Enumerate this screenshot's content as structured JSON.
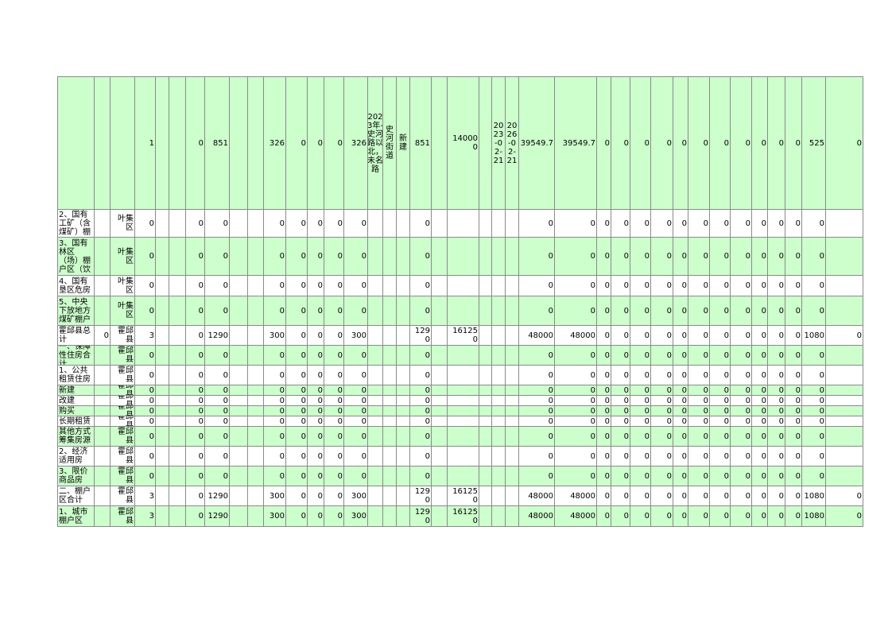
{
  "table": {
    "rows": [
      [
        null,
        null,
        null,
        1,
        null,
        null,
        0,
        851,
        null,
        null,
        326,
        0,
        0,
        0,
        326,
        "2023年-史河路以北，未名路",
        "史河街道",
        "新建",
        851,
        null,
        140000,
        null,
        "2023-02-21",
        "2026-02-21",
        39549.7,
        39549.7,
        0,
        0,
        0,
        0,
        0,
        0,
        0,
        0,
        0,
        0,
        0,
        525,
        0
      ],
      [
        "2、国有工矿（含煤矿）棚",
        null,
        "叶集区",
        0,
        null,
        null,
        0,
        0,
        null,
        null,
        0,
        0,
        0,
        0,
        0,
        null,
        null,
        null,
        0,
        null,
        null,
        null,
        null,
        null,
        0,
        0,
        0,
        0,
        0,
        0,
        0,
        0,
        0,
        0,
        0,
        0,
        0,
        0,
        null
      ],
      [
        "3、国有林区（场）棚户区（饮",
        null,
        "叶集区",
        0,
        null,
        null,
        0,
        0,
        null,
        null,
        0,
        0,
        0,
        0,
        0,
        null,
        null,
        null,
        0,
        null,
        null,
        null,
        null,
        null,
        0,
        0,
        0,
        0,
        0,
        0,
        0,
        0,
        0,
        0,
        0,
        0,
        0,
        0,
        null
      ],
      [
        "4、国有垦区危房",
        null,
        "叶集区",
        0,
        null,
        null,
        0,
        0,
        null,
        null,
        0,
        0,
        0,
        0,
        0,
        null,
        null,
        null,
        0,
        null,
        null,
        null,
        null,
        null,
        0,
        0,
        0,
        0,
        0,
        0,
        0,
        0,
        0,
        0,
        0,
        0,
        0,
        0,
        null
      ],
      [
        "5、中央下放地方煤矿棚户",
        null,
        "叶集区",
        0,
        null,
        null,
        0,
        0,
        null,
        null,
        0,
        0,
        0,
        0,
        0,
        null,
        null,
        null,
        0,
        null,
        null,
        null,
        null,
        null,
        0,
        0,
        0,
        0,
        0,
        0,
        0,
        0,
        0,
        0,
        0,
        0,
        0,
        0,
        null
      ],
      [
        "霍邱县总计",
        0,
        "霍邱县",
        3,
        null,
        null,
        0,
        1290,
        null,
        null,
        300,
        0,
        0,
        0,
        300,
        null,
        null,
        null,
        1290,
        null,
        161250,
        null,
        null,
        null,
        48000,
        48000,
        0,
        0,
        0,
        0,
        0,
        0,
        0,
        0,
        0,
        0,
        0,
        1080,
        0
      ],
      [
        "一、保障性住房合计",
        null,
        "霍邱县",
        0,
        null,
        null,
        0,
        0,
        null,
        null,
        0,
        0,
        0,
        0,
        0,
        null,
        null,
        null,
        0,
        null,
        null,
        null,
        null,
        null,
        0,
        0,
        0,
        0,
        0,
        0,
        0,
        0,
        0,
        0,
        0,
        0,
        0,
        0,
        null
      ],
      [
        "1、公共租赁住房",
        null,
        "霍邱县",
        0,
        null,
        null,
        0,
        0,
        null,
        null,
        0,
        0,
        0,
        0,
        0,
        null,
        null,
        null,
        0,
        null,
        null,
        null,
        null,
        null,
        0,
        0,
        0,
        0,
        0,
        0,
        0,
        0,
        0,
        0,
        0,
        0,
        0,
        0,
        null
      ],
      [
        "新建",
        null,
        "霍邱县",
        0,
        null,
        null,
        0,
        0,
        null,
        null,
        0,
        0,
        0,
        0,
        0,
        null,
        null,
        null,
        0,
        null,
        null,
        null,
        null,
        null,
        0,
        0,
        0,
        0,
        0,
        0,
        0,
        0,
        0,
        0,
        0,
        0,
        0,
        0,
        null
      ],
      [
        "改建",
        null,
        "霍邱县",
        0,
        null,
        null,
        0,
        0,
        null,
        null,
        0,
        0,
        0,
        0,
        0,
        null,
        null,
        null,
        0,
        null,
        null,
        null,
        null,
        null,
        0,
        0,
        0,
        0,
        0,
        0,
        0,
        0,
        0,
        0,
        0,
        0,
        0,
        0,
        null
      ],
      [
        "购买",
        null,
        "霍邱县",
        0,
        null,
        null,
        0,
        0,
        null,
        null,
        0,
        0,
        0,
        0,
        0,
        null,
        null,
        null,
        0,
        null,
        null,
        null,
        null,
        null,
        0,
        0,
        0,
        0,
        0,
        0,
        0,
        0,
        0,
        0,
        0,
        0,
        0,
        0,
        null
      ],
      [
        "长期租赁",
        null,
        "霍邱县",
        0,
        null,
        null,
        0,
        0,
        null,
        null,
        0,
        0,
        0,
        0,
        0,
        null,
        null,
        null,
        0,
        null,
        null,
        null,
        null,
        null,
        0,
        0,
        0,
        0,
        0,
        0,
        0,
        0,
        0,
        0,
        0,
        0,
        0,
        0,
        null
      ],
      [
        "其他方式筹集房源",
        null,
        "霍邱县",
        0,
        null,
        null,
        0,
        0,
        null,
        null,
        0,
        0,
        0,
        0,
        0,
        null,
        null,
        null,
        0,
        null,
        null,
        null,
        null,
        null,
        0,
        0,
        0,
        0,
        0,
        0,
        0,
        0,
        0,
        0,
        0,
        0,
        0,
        0,
        null
      ],
      [
        "2、经济适用房",
        null,
        "霍邱县",
        0,
        null,
        null,
        0,
        0,
        null,
        null,
        0,
        0,
        0,
        0,
        0,
        null,
        null,
        null,
        0,
        null,
        null,
        null,
        null,
        null,
        0,
        0,
        0,
        0,
        0,
        0,
        0,
        0,
        0,
        0,
        0,
        0,
        0,
        0,
        null
      ],
      [
        "3、限价商品房",
        null,
        "霍邱县",
        0,
        null,
        null,
        0,
        0,
        null,
        null,
        0,
        0,
        0,
        0,
        0,
        null,
        null,
        null,
        0,
        null,
        null,
        null,
        null,
        null,
        0,
        0,
        0,
        0,
        0,
        0,
        0,
        0,
        0,
        0,
        0,
        0,
        0,
        0,
        null
      ],
      [
        "二、棚户区合计",
        null,
        "霍邱县",
        3,
        null,
        null,
        0,
        1290,
        null,
        null,
        300,
        0,
        0,
        0,
        300,
        null,
        null,
        null,
        1290,
        null,
        161250,
        null,
        null,
        null,
        48000,
        48000,
        0,
        0,
        0,
        0,
        0,
        0,
        0,
        0,
        0,
        0,
        0,
        1080,
        0
      ],
      [
        "1、城市棚户区",
        null,
        "霍邱县",
        3,
        null,
        null,
        0,
        1290,
        null,
        null,
        300,
        0,
        0,
        0,
        300,
        null,
        null,
        null,
        1290,
        null,
        161250,
        null,
        null,
        null,
        48000,
        48000,
        0,
        0,
        0,
        0,
        0,
        0,
        0,
        0,
        0,
        0,
        0,
        1080,
        0
      ]
    ]
  }
}
